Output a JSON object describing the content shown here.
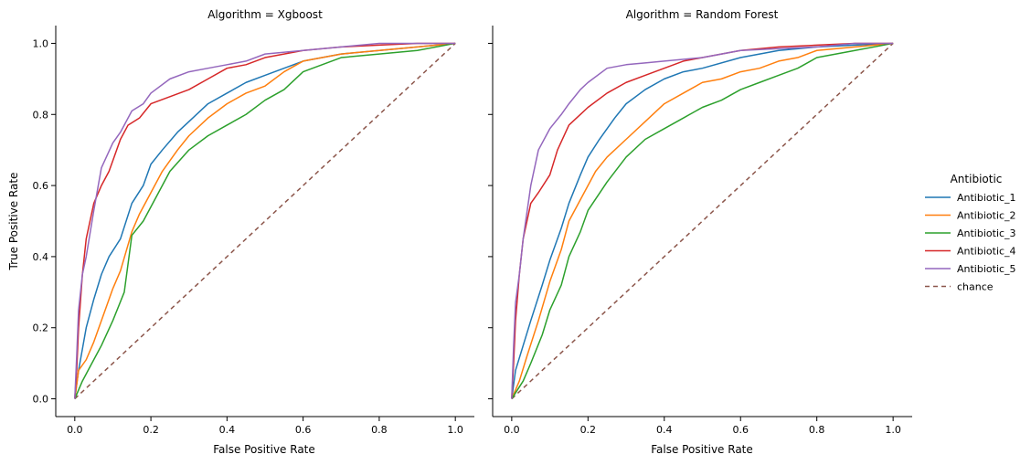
{
  "chart_data": {
    "type": "line",
    "ylabel": "True Positive Rate",
    "xlabel": "False Positive Rate",
    "xlim": [
      -0.05,
      1.05
    ],
    "ylim": [
      -0.05,
      1.05
    ],
    "xticks": [
      "0.0",
      "0.2",
      "0.4",
      "0.6",
      "0.8",
      "1.0"
    ],
    "yticks": [
      "0.0",
      "0.2",
      "0.4",
      "0.6",
      "0.8",
      "1.0"
    ],
    "xtick_values": [
      0,
      0.2,
      0.4,
      0.6,
      0.8,
      1.0
    ],
    "ytick_values": [
      0,
      0.2,
      0.4,
      0.6,
      0.8,
      1.0
    ],
    "grid": false,
    "legend": {
      "title": "Antibiotic",
      "placement": "right",
      "entries": [
        {
          "name": "Antibiotic_1",
          "color": "#1f77b4",
          "dash": false
        },
        {
          "name": "Antibiotic_2",
          "color": "#ff7f0e",
          "dash": false
        },
        {
          "name": "Antibiotic_3",
          "color": "#2ca02c",
          "dash": false
        },
        {
          "name": "Antibiotic_4",
          "color": "#d62728",
          "dash": false
        },
        {
          "name": "Antibiotic_5",
          "color": "#9467bd",
          "dash": false
        },
        {
          "name": "chance",
          "color": "#8c564b",
          "dash": true
        }
      ]
    },
    "panels": [
      {
        "title": "Algorithm = Xgboost",
        "series": [
          {
            "name": "Antibiotic_1",
            "color": "#1f77b4",
            "x": [
              0,
              0.01,
              0.02,
              0.03,
              0.05,
              0.07,
              0.09,
              0.12,
              0.15,
              0.18,
              0.2,
              0.23,
              0.27,
              0.3,
              0.35,
              0.4,
              0.45,
              0.5,
              0.55,
              0.6,
              0.65,
              0.7,
              0.8,
              0.9,
              1.0
            ],
            "y": [
              0,
              0.08,
              0.14,
              0.2,
              0.28,
              0.35,
              0.4,
              0.45,
              0.55,
              0.6,
              0.66,
              0.7,
              0.75,
              0.78,
              0.83,
              0.86,
              0.89,
              0.91,
              0.93,
              0.95,
              0.96,
              0.97,
              0.98,
              0.99,
              1.0
            ]
          },
          {
            "name": "Antibiotic_2",
            "color": "#ff7f0e",
            "x": [
              0,
              0.01,
              0.03,
              0.05,
              0.08,
              0.1,
              0.12,
              0.15,
              0.17,
              0.2,
              0.23,
              0.27,
              0.3,
              0.35,
              0.4,
              0.45,
              0.5,
              0.55,
              0.6,
              0.65,
              0.7,
              0.8,
              0.9,
              1.0
            ],
            "y": [
              0,
              0.08,
              0.11,
              0.16,
              0.25,
              0.31,
              0.36,
              0.47,
              0.52,
              0.58,
              0.64,
              0.7,
              0.74,
              0.79,
              0.83,
              0.86,
              0.88,
              0.92,
              0.95,
              0.96,
              0.97,
              0.98,
              0.99,
              1.0
            ]
          },
          {
            "name": "Antibiotic_3",
            "color": "#2ca02c",
            "x": [
              0,
              0.02,
              0.04,
              0.07,
              0.1,
              0.13,
              0.15,
              0.18,
              0.22,
              0.25,
              0.3,
              0.35,
              0.4,
              0.45,
              0.5,
              0.55,
              0.6,
              0.65,
              0.7,
              0.8,
              0.9,
              1.0
            ],
            "y": [
              0,
              0.05,
              0.09,
              0.15,
              0.22,
              0.3,
              0.46,
              0.5,
              0.58,
              0.64,
              0.7,
              0.74,
              0.77,
              0.8,
              0.84,
              0.87,
              0.92,
              0.94,
              0.96,
              0.97,
              0.98,
              1.0
            ]
          },
          {
            "name": "Antibiotic_4",
            "color": "#d62728",
            "x": [
              0,
              0.005,
              0.01,
              0.02,
              0.03,
              0.05,
              0.07,
              0.09,
              0.1,
              0.12,
              0.14,
              0.17,
              0.2,
              0.25,
              0.3,
              0.35,
              0.4,
              0.45,
              0.5,
              0.6,
              0.7,
              0.8,
              0.9,
              1.0
            ],
            "y": [
              0,
              0.08,
              0.2,
              0.35,
              0.45,
              0.55,
              0.6,
              0.64,
              0.67,
              0.73,
              0.77,
              0.79,
              0.83,
              0.85,
              0.87,
              0.9,
              0.93,
              0.94,
              0.96,
              0.98,
              0.99,
              0.995,
              1.0,
              1.0
            ]
          },
          {
            "name": "Antibiotic_5",
            "color": "#9467bd",
            "x": [
              0,
              0.005,
              0.01,
              0.02,
              0.03,
              0.05,
              0.07,
              0.1,
              0.12,
              0.15,
              0.18,
              0.2,
              0.25,
              0.3,
              0.35,
              0.4,
              0.45,
              0.5,
              0.6,
              0.7,
              0.8,
              0.9,
              1.0
            ],
            "y": [
              0,
              0.12,
              0.25,
              0.35,
              0.4,
              0.53,
              0.65,
              0.72,
              0.75,
              0.81,
              0.83,
              0.86,
              0.9,
              0.92,
              0.93,
              0.94,
              0.95,
              0.97,
              0.98,
              0.99,
              1.0,
              1.0,
              1.0
            ]
          },
          {
            "name": "chance",
            "color": "#8c564b",
            "dash": true,
            "x": [
              0,
              1.0
            ],
            "y": [
              0,
              1.0
            ]
          }
        ]
      },
      {
        "title": "Algorithm = Random Forest",
        "series": [
          {
            "name": "Antibiotic_1",
            "color": "#1f77b4",
            "x": [
              0,
              0.01,
              0.03,
              0.05,
              0.08,
              0.1,
              0.13,
              0.15,
              0.18,
              0.2,
              0.23,
              0.27,
              0.3,
              0.35,
              0.4,
              0.45,
              0.5,
              0.6,
              0.7,
              0.8,
              0.9,
              1.0
            ],
            "y": [
              0,
              0.08,
              0.15,
              0.22,
              0.32,
              0.39,
              0.48,
              0.55,
              0.63,
              0.68,
              0.73,
              0.79,
              0.83,
              0.87,
              0.9,
              0.92,
              0.93,
              0.96,
              0.98,
              0.99,
              0.995,
              1.0
            ]
          },
          {
            "name": "Antibiotic_2",
            "color": "#ff7f0e",
            "x": [
              0,
              0.02,
              0.04,
              0.07,
              0.1,
              0.13,
              0.15,
              0.18,
              0.22,
              0.25,
              0.3,
              0.35,
              0.4,
              0.45,
              0.5,
              0.55,
              0.6,
              0.65,
              0.7,
              0.75,
              0.8,
              0.9,
              1.0
            ],
            "y": [
              0,
              0.05,
              0.12,
              0.22,
              0.33,
              0.42,
              0.5,
              0.56,
              0.64,
              0.68,
              0.73,
              0.78,
              0.83,
              0.86,
              0.89,
              0.9,
              0.92,
              0.93,
              0.95,
              0.96,
              0.98,
              0.99,
              1.0
            ]
          },
          {
            "name": "Antibiotic_3",
            "color": "#2ca02c",
            "x": [
              0,
              0.03,
              0.05,
              0.08,
              0.1,
              0.13,
              0.15,
              0.18,
              0.2,
              0.25,
              0.3,
              0.35,
              0.4,
              0.45,
              0.5,
              0.55,
              0.6,
              0.65,
              0.7,
              0.75,
              0.8,
              0.9,
              1.0
            ],
            "y": [
              0,
              0.05,
              0.1,
              0.18,
              0.25,
              0.32,
              0.4,
              0.47,
              0.53,
              0.61,
              0.68,
              0.73,
              0.76,
              0.79,
              0.82,
              0.84,
              0.87,
              0.89,
              0.91,
              0.93,
              0.96,
              0.98,
              1.0
            ]
          },
          {
            "name": "Antibiotic_4",
            "color": "#d62728",
            "x": [
              0,
              0.005,
              0.01,
              0.02,
              0.03,
              0.05,
              0.07,
              0.1,
              0.12,
              0.15,
              0.18,
              0.2,
              0.25,
              0.3,
              0.35,
              0.4,
              0.45,
              0.5,
              0.6,
              0.7,
              0.8,
              0.9,
              1.0
            ],
            "y": [
              0,
              0.1,
              0.22,
              0.35,
              0.45,
              0.55,
              0.58,
              0.63,
              0.7,
              0.77,
              0.8,
              0.82,
              0.86,
              0.89,
              0.91,
              0.93,
              0.95,
              0.96,
              0.98,
              0.99,
              0.995,
              1.0,
              1.0
            ]
          },
          {
            "name": "Antibiotic_5",
            "color": "#9467bd",
            "x": [
              0,
              0.005,
              0.01,
              0.02,
              0.03,
              0.05,
              0.07,
              0.1,
              0.13,
              0.15,
              0.18,
              0.2,
              0.25,
              0.3,
              0.35,
              0.4,
              0.5,
              0.6,
              0.7,
              0.8,
              0.9,
              1.0
            ],
            "y": [
              0,
              0.15,
              0.27,
              0.35,
              0.45,
              0.6,
              0.7,
              0.76,
              0.8,
              0.83,
              0.87,
              0.89,
              0.93,
              0.94,
              0.945,
              0.95,
              0.96,
              0.98,
              0.985,
              0.99,
              1.0,
              1.0
            ]
          },
          {
            "name": "chance",
            "color": "#8c564b",
            "dash": true,
            "x": [
              0,
              1.0
            ],
            "y": [
              0,
              1.0
            ]
          }
        ]
      }
    ]
  }
}
